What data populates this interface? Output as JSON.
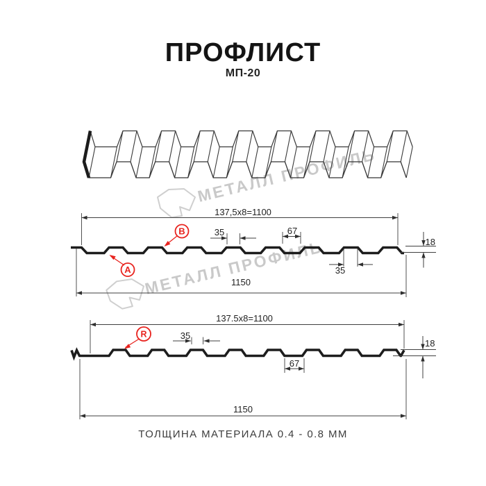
{
  "title": "ПРОФЛИСТ",
  "subtitle": "МП-20",
  "footer_note": "ТОЛЩИНА МАТЕРИАЛА 0.4 - 0.8 ММ",
  "watermark": {
    "brand": "МЕТАЛЛ ПРОФИЛЬ"
  },
  "colors": {
    "red": "#e8231e",
    "line": "#1d1d1d",
    "dim_line": "#3f3f3f",
    "watermark": "#c9c9c9"
  },
  "profile_top": {
    "pitch_label": "137,5x8=1100",
    "overall_width": "1150",
    "crest_width": "35",
    "valley_width": "67",
    "height": "18",
    "crest_width_bottom": "35",
    "point_a": "A",
    "point_b": "B"
  },
  "profile_bottom": {
    "pitch_label": "137.5x8=1100",
    "overall_width": "1150",
    "crest_width": "35",
    "valley_width": "67",
    "height": "18",
    "point_r": "R"
  }
}
